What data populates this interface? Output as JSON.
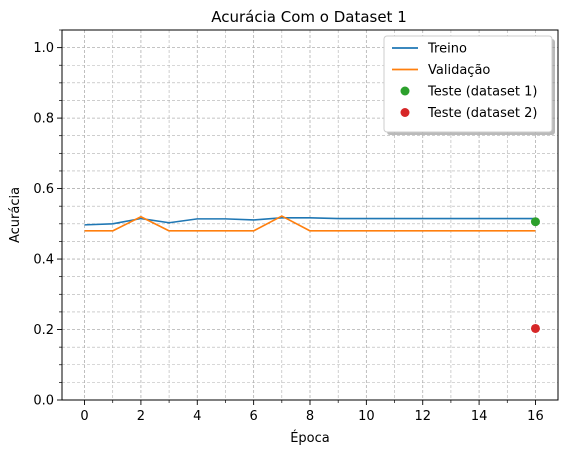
{
  "chart_data": {
    "type": "line",
    "title": "Acurácia Com o Dataset 1",
    "xlabel": "Época",
    "ylabel": "Acurácia",
    "xlim": [
      -0.8,
      16.8
    ],
    "ylim": [
      0.0,
      1.05
    ],
    "xticks": [
      0,
      2,
      4,
      6,
      8,
      10,
      12,
      14,
      16
    ],
    "xtick_labels": [
      "0",
      "2",
      "4",
      "6",
      "8",
      "10",
      "12",
      "14",
      "16"
    ],
    "xminor": [
      1,
      3,
      5,
      7,
      9,
      11,
      13,
      15
    ],
    "yticks": [
      0.0,
      0.2,
      0.4,
      0.6,
      0.8,
      1.0
    ],
    "ytick_labels": [
      "0.0",
      "0.2",
      "0.4",
      "0.6",
      "0.8",
      "1.0"
    ],
    "yminor": [
      0.05,
      0.1,
      0.15,
      0.25,
      0.3,
      0.35,
      0.45,
      0.5,
      0.55,
      0.65,
      0.7,
      0.75,
      0.85,
      0.9,
      0.95,
      1.05
    ],
    "grid": true,
    "legend_position": "top-right",
    "series": [
      {
        "name": "Treino",
        "kind": "line",
        "color": "#1f77b4",
        "x": [
          0,
          1,
          2,
          3,
          4,
          5,
          6,
          7,
          8,
          9,
          10,
          11,
          12,
          13,
          14,
          15,
          16
        ],
        "y": [
          0.497,
          0.5,
          0.515,
          0.503,
          0.514,
          0.514,
          0.511,
          0.517,
          0.517,
          0.515,
          0.515,
          0.515,
          0.515,
          0.515,
          0.515,
          0.515,
          0.515
        ]
      },
      {
        "name": "Validação",
        "kind": "line",
        "color": "#ff7f0e",
        "x": [
          0,
          1,
          2,
          3,
          4,
          5,
          6,
          7,
          8,
          9,
          10,
          11,
          12,
          13,
          14,
          15,
          16
        ],
        "y": [
          0.48,
          0.48,
          0.52,
          0.48,
          0.48,
          0.48,
          0.48,
          0.522,
          0.48,
          0.48,
          0.48,
          0.48,
          0.48,
          0.48,
          0.48,
          0.48,
          0.48
        ]
      },
      {
        "name": "Teste (dataset 1)",
        "kind": "point",
        "color": "#2ca02c",
        "x": [
          16
        ],
        "y": [
          0.506
        ]
      },
      {
        "name": "Teste (dataset 2)",
        "kind": "point",
        "color": "#d62728",
        "x": [
          16
        ],
        "y": [
          0.203
        ]
      }
    ]
  }
}
